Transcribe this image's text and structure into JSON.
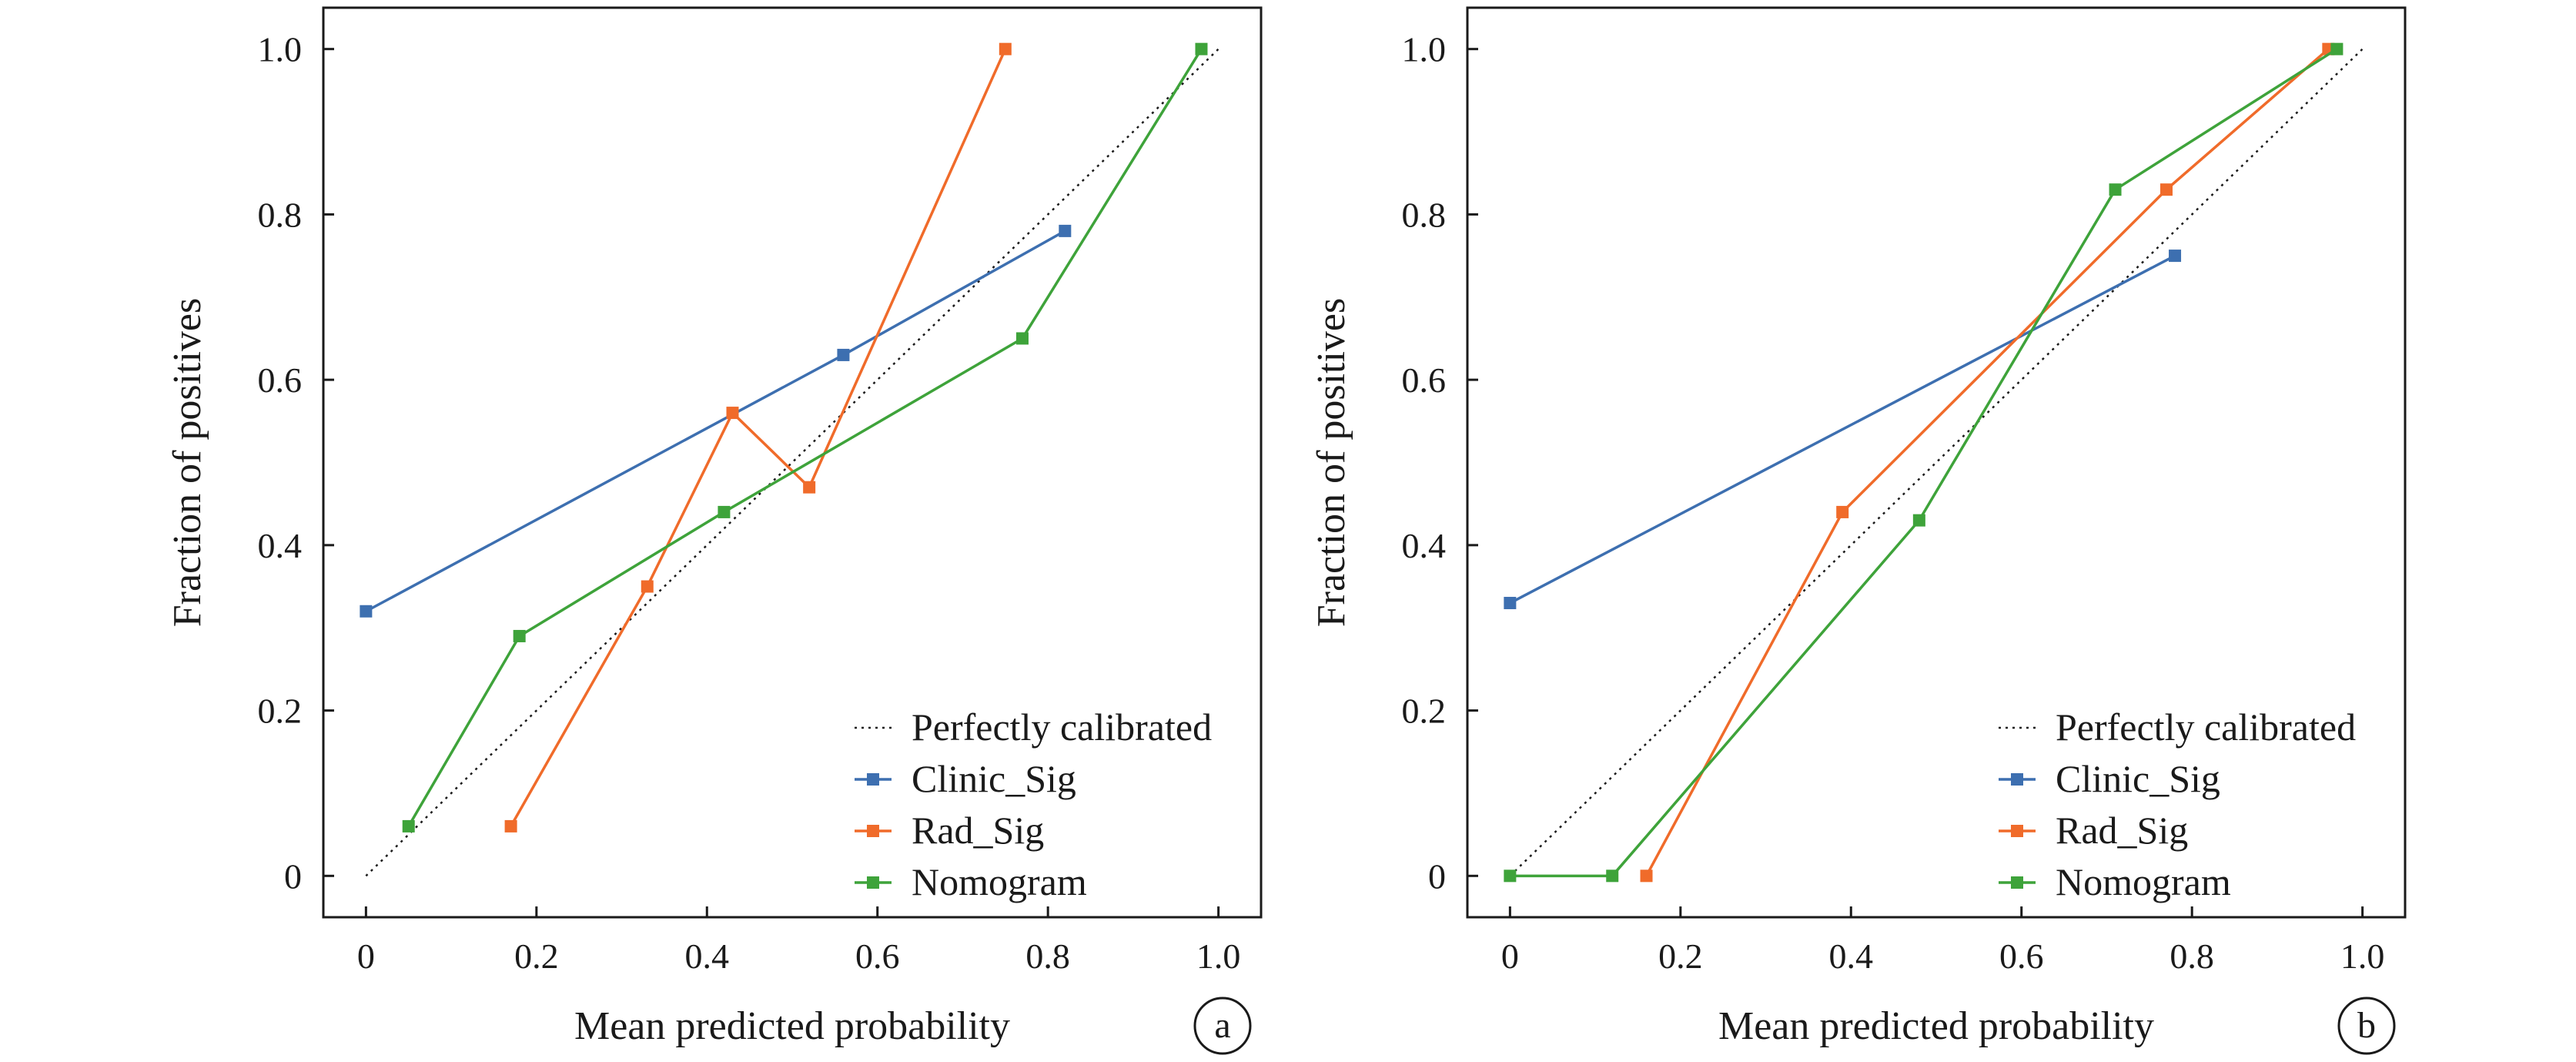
{
  "colors": {
    "clinic": "#3d6fb0",
    "rad": "#f06b2a",
    "nomogram": "#3ea33a",
    "diagonal": "#1a1a1a",
    "axes": "#1a1a1a"
  },
  "chart_data": [
    {
      "type": "line",
      "panel_label": "a",
      "xlabel": "Mean predicted probability",
      "ylabel": "Fraction of positives",
      "xlim": [
        -0.05,
        1.05
      ],
      "ylim": [
        -0.05,
        1.05
      ],
      "xticks": [
        0,
        0.2,
        0.4,
        0.6,
        0.8,
        1.0
      ],
      "xtick_labels": [
        "0",
        "0.2",
        "0.4",
        "0.6",
        "0.8",
        "1.0"
      ],
      "yticks": [
        0,
        0.2,
        0.4,
        0.6,
        0.8,
        1.0
      ],
      "ytick_labels": [
        "0",
        "0.2",
        "0.4",
        "0.6",
        "0.8",
        "1.0"
      ],
      "legend_position": "bottom-right",
      "reference": {
        "name": "Perfectly calibrated",
        "x": [
          0,
          1
        ],
        "y": [
          0,
          1
        ]
      },
      "series": [
        {
          "name": "Clinic_Sig",
          "color_key": "clinic",
          "x": [
            0.0,
            0.56,
            0.82
          ],
          "y": [
            0.32,
            0.63,
            0.78
          ]
        },
        {
          "name": "Rad_Sig",
          "color_key": "rad",
          "x": [
            0.17,
            0.33,
            0.43,
            0.52,
            0.75
          ],
          "y": [
            0.06,
            0.35,
            0.56,
            0.47,
            1.0
          ]
        },
        {
          "name": "Nomogram",
          "color_key": "nomogram",
          "x": [
            0.05,
            0.18,
            0.42,
            0.77,
            0.98
          ],
          "y": [
            0.06,
            0.29,
            0.44,
            0.65,
            1.0
          ]
        }
      ]
    },
    {
      "type": "line",
      "panel_label": "b",
      "xlabel": "Mean predicted probability",
      "ylabel": "Fraction of positives",
      "xlim": [
        -0.05,
        1.05
      ],
      "ylim": [
        -0.05,
        1.05
      ],
      "xticks": [
        0,
        0.2,
        0.4,
        0.6,
        0.8,
        1.0
      ],
      "xtick_labels": [
        "0",
        "0.2",
        "0.4",
        "0.6",
        "0.8",
        "1.0"
      ],
      "yticks": [
        0,
        0.2,
        0.4,
        0.6,
        0.8,
        1.0
      ],
      "ytick_labels": [
        "0",
        "0.2",
        "0.4",
        "0.6",
        "0.8",
        "1.0"
      ],
      "legend_position": "bottom-right",
      "reference": {
        "name": "Perfectly calibrated",
        "x": [
          0,
          1
        ],
        "y": [
          0,
          1
        ]
      },
      "series": [
        {
          "name": "Clinic_Sig",
          "color_key": "clinic",
          "x": [
            0.0,
            0.78
          ],
          "y": [
            0.33,
            0.75
          ]
        },
        {
          "name": "Rad_Sig",
          "color_key": "rad",
          "x": [
            0.16,
            0.39,
            0.77,
            0.96
          ],
          "y": [
            0.0,
            0.44,
            0.83,
            1.0
          ]
        },
        {
          "name": "Nomogram",
          "color_key": "nomogram",
          "x": [
            0.0,
            0.12,
            0.48,
            0.71,
            0.97
          ],
          "y": [
            0.0,
            0.0,
            0.43,
            0.83,
            1.0
          ]
        }
      ]
    }
  ]
}
